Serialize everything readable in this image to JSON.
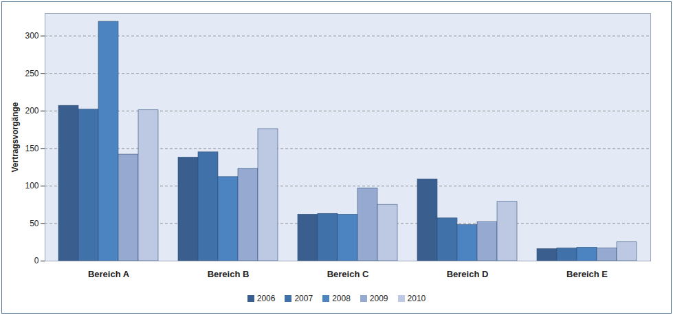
{
  "chart_data": {
    "type": "bar",
    "categories": [
      "Bereich A",
      "Bereich B",
      "Bereich C",
      "Bereich D",
      "Bereich E"
    ],
    "series": [
      {
        "name": "2006",
        "color": "#3a5f8f",
        "values": [
          207,
          138,
          62,
          109,
          16
        ]
      },
      {
        "name": "2007",
        "color": "#4171a9",
        "values": [
          202,
          145,
          63,
          57,
          17
        ]
      },
      {
        "name": "2008",
        "color": "#4c84c2",
        "values": [
          319,
          112,
          62,
          48,
          18
        ]
      },
      {
        "name": "2009",
        "color": "#96a9d0",
        "values": [
          142,
          123,
          97,
          52,
          17
        ]
      },
      {
        "name": "2010",
        "color": "#bdc9e3",
        "values": [
          201,
          176,
          75,
          79,
          25
        ]
      }
    ],
    "y_label": "Vertragsvorgänge",
    "ylim": [
      0,
      330
    ],
    "yticks": [
      0,
      50,
      100,
      150,
      200,
      250,
      300
    ],
    "grid": true,
    "legend": "bottom"
  }
}
